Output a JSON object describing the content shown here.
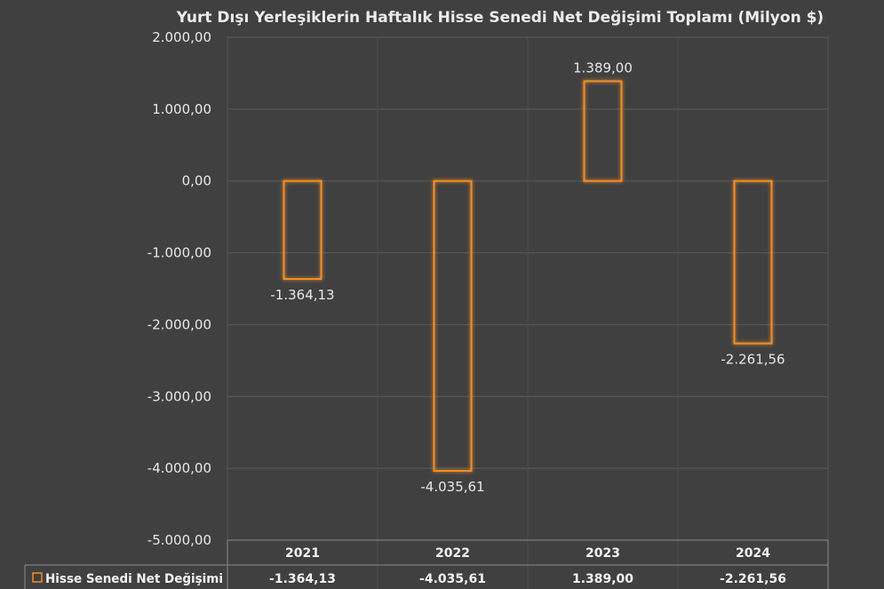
{
  "chart_data": {
    "type": "bar",
    "title": "Yurt Dışı Yerleşiklerin Haftalık Hisse Senedi Net Değişimi Toplamı (Milyon $)",
    "categories": [
      "2021",
      "2022",
      "2023",
      "2024"
    ],
    "series": [
      {
        "name": "Hisse Senedi Net Değişimi",
        "values": [
          -1364.13,
          -4035.61,
          1389.0,
          -2261.56
        ],
        "labels": [
          "-1.364,13",
          "-4.035,61",
          "1.389,00",
          "-2.261,56"
        ],
        "color": "#f28e2b"
      }
    ],
    "ylim": [
      -5000,
      2000
    ],
    "yticks": [
      2000,
      1000,
      0,
      -1000,
      -2000,
      -3000,
      -4000,
      -5000
    ],
    "ytick_labels": [
      "2.000,00",
      "1.000,00",
      "0,00",
      "-1.000,00",
      "-2.000,00",
      "-3.000,00",
      "-4.000,00",
      "-5.000,00"
    ],
    "grid": true,
    "legend": "data-table",
    "data_table": true
  }
}
